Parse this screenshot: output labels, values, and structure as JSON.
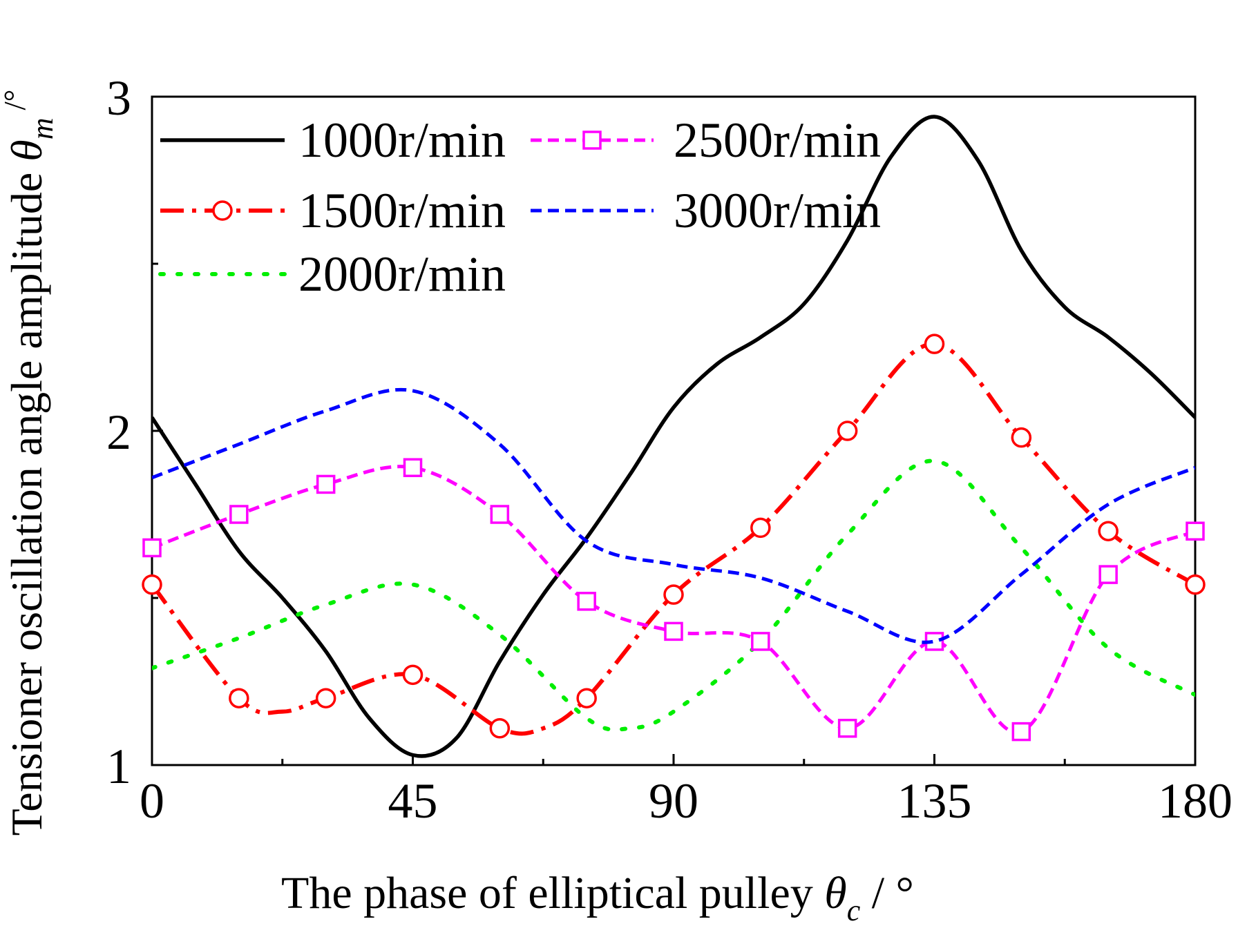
{
  "chart_data": {
    "type": "line",
    "xlabel": {
      "prefix": "The phase of elliptical pulley ",
      "symbol": "θ",
      "subscript": "c",
      "suffix": " / °"
    },
    "ylabel": {
      "prefix": "Tensioner oscillation angle amplitude ",
      "symbol": "θ",
      "subscript": "m",
      "suffix": " /°"
    },
    "xlim": [
      0,
      180
    ],
    "ylim": [
      1,
      3
    ],
    "xticks": [
      0,
      45,
      90,
      135,
      180
    ],
    "xtick_labels": [
      "0",
      "45",
      "90",
      "135",
      "180"
    ],
    "yticks": [
      1,
      2,
      3
    ],
    "ytick_labels": [
      "1",
      "2",
      "3"
    ],
    "legend_position": "top-left",
    "series": [
      {
        "name": "1000r/min",
        "color": "#000000",
        "style": "solid",
        "marker": "none",
        "x": [
          0,
          7.5,
          15,
          22.5,
          30,
          37.5,
          45,
          52.5,
          60,
          67.5,
          75,
          82.5,
          90,
          97.5,
          105,
          112.5,
          120,
          127.5,
          135,
          142.5,
          150,
          157.5,
          165,
          172.5,
          180
        ],
        "values": [
          2.04,
          1.84,
          1.64,
          1.5,
          1.34,
          1.14,
          1.03,
          1.08,
          1.31,
          1.51,
          1.68,
          1.87,
          2.07,
          2.2,
          2.28,
          2.38,
          2.57,
          2.82,
          2.94,
          2.81,
          2.54,
          2.37,
          2.28,
          2.17,
          2.04
        ]
      },
      {
        "name": "1500r/min",
        "color": "#ff0000",
        "style": "dashdot",
        "marker": "circle",
        "x": [
          0,
          15,
          22.5,
          30,
          45,
          60,
          67.5,
          75,
          90,
          105,
          120,
          135,
          150,
          165,
          180
        ],
        "values": [
          1.54,
          1.2,
          1.16,
          1.2,
          1.27,
          1.11,
          1.11,
          1.2,
          1.51,
          1.71,
          2.0,
          2.26,
          1.98,
          1.7,
          1.54
        ]
      },
      {
        "name": "2000r/min",
        "color": "#00ee00",
        "style": "dotted",
        "marker": "none",
        "x": [
          0,
          15,
          30,
          45,
          60,
          75,
          82.5,
          90,
          105,
          120,
          135,
          150,
          165,
          180
        ],
        "values": [
          1.29,
          1.38,
          1.48,
          1.54,
          1.39,
          1.14,
          1.11,
          1.16,
          1.37,
          1.69,
          1.91,
          1.65,
          1.35,
          1.21
        ]
      },
      {
        "name": "2500r/min",
        "color": "#ff00ff",
        "style": "dashed",
        "marker": "square",
        "x": [
          0,
          15,
          30,
          45,
          60,
          75,
          90,
          105,
          120,
          135,
          150,
          165,
          180
        ],
        "values": [
          1.65,
          1.75,
          1.84,
          1.89,
          1.75,
          1.49,
          1.4,
          1.37,
          1.11,
          1.37,
          1.1,
          1.57,
          1.7
        ]
      },
      {
        "name": "3000r/min",
        "color": "#0000ff",
        "style": "dashed",
        "marker": "none",
        "x": [
          0,
          15,
          30,
          45,
          60,
          75,
          90,
          105,
          120,
          135,
          150,
          165,
          180
        ],
        "values": [
          1.86,
          1.96,
          2.06,
          2.12,
          1.96,
          1.67,
          1.6,
          1.56,
          1.46,
          1.37,
          1.57,
          1.78,
          1.89
        ]
      }
    ]
  }
}
